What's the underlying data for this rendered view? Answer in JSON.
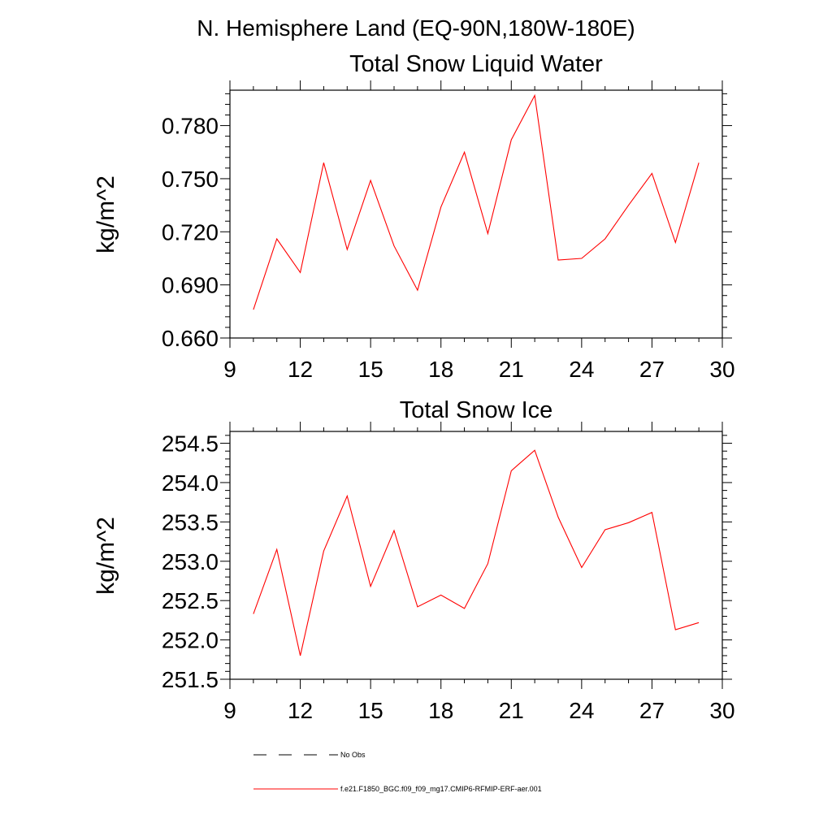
{
  "page_title": "N. Hemisphere Land (EQ-90N,180W-180E)",
  "legend": {
    "items": [
      {
        "label": "No Obs",
        "color": "#000000",
        "dash": true
      },
      {
        "label": "f.e21.F1850_BGC.f09_f09_mg17.CMIP6-RFMIP-ERF-aer.001",
        "color": "#ff0000",
        "dash": false
      }
    ]
  },
  "chart_data": [
    {
      "type": "line",
      "title": "Total Snow Liquid Water",
      "xlabel": "",
      "ylabel": "kg/m^2",
      "xlim": [
        9,
        30
      ],
      "ylim": [
        0.66,
        0.8
      ],
      "xticks": [
        9,
        12,
        15,
        18,
        21,
        24,
        27,
        30
      ],
      "yticks": [
        "0.660",
        "0.690",
        "0.720",
        "0.750",
        "0.780"
      ],
      "grid": false,
      "series": [
        {
          "name": "f.e21.F1850_BGC.f09_f09_mg17.CMIP6-RFMIP-ERF-aer.001",
          "color": "#ff0000",
          "x": [
            10,
            11,
            12,
            13,
            14,
            15,
            16,
            17,
            18,
            19,
            20,
            21,
            22,
            23,
            24,
            25,
            26,
            27,
            28,
            29
          ],
          "y": [
            0.676,
            0.716,
            0.697,
            0.759,
            0.71,
            0.749,
            0.712,
            0.687,
            0.734,
            0.765,
            0.719,
            0.772,
            0.797,
            0.704,
            0.705,
            0.716,
            0.735,
            0.753,
            0.714,
            0.759
          ]
        }
      ]
    },
    {
      "type": "line",
      "title": "Total Snow Ice",
      "xlabel": "",
      "ylabel": "kg/m^2",
      "xlim": [
        9,
        30
      ],
      "ylim": [
        251.5,
        254.65
      ],
      "xticks": [
        9,
        12,
        15,
        18,
        21,
        24,
        27,
        30
      ],
      "yticks": [
        "251.5",
        "252.0",
        "252.5",
        "253.0",
        "253.5",
        "254.0",
        "254.5"
      ],
      "grid": false,
      "series": [
        {
          "name": "f.e21.F1850_BGC.f09_f09_mg17.CMIP6-RFMIP-ERF-aer.001",
          "color": "#ff0000",
          "x": [
            10,
            11,
            12,
            13,
            14,
            15,
            16,
            17,
            18,
            19,
            20,
            21,
            22,
            23,
            24,
            25,
            26,
            27,
            28,
            29
          ],
          "y": [
            252.33,
            253.15,
            251.8,
            253.13,
            253.83,
            252.68,
            253.39,
            252.42,
            252.57,
            252.4,
            252.97,
            254.15,
            254.41,
            253.56,
            252.92,
            253.4,
            253.49,
            253.62,
            252.13,
            252.22
          ]
        }
      ]
    }
  ]
}
